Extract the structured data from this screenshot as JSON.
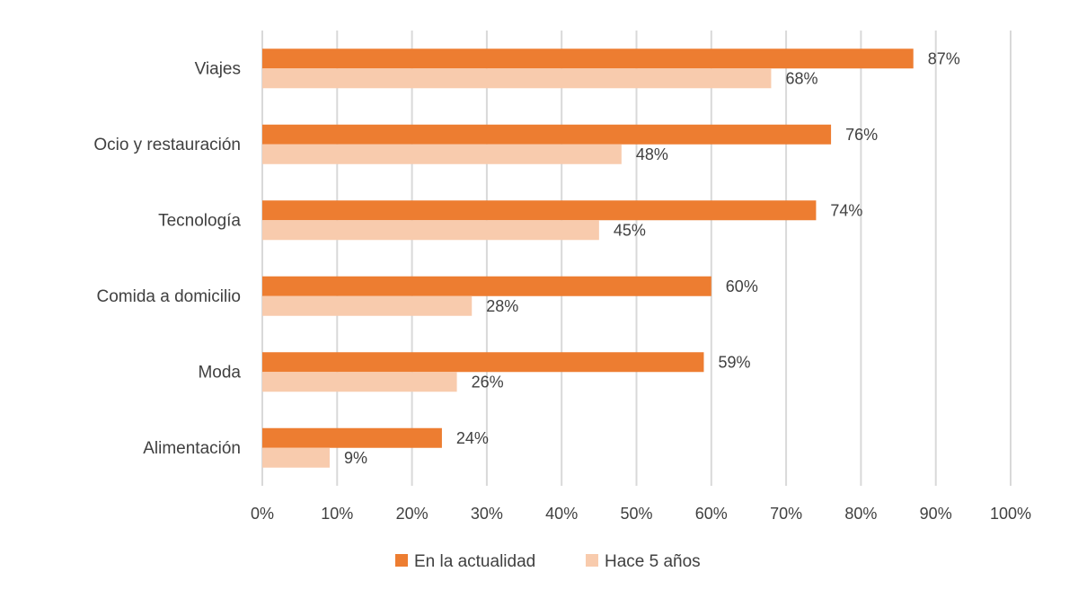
{
  "chart_data": {
    "type": "bar",
    "orientation": "horizontal",
    "categories": [
      "Viajes",
      "Ocio y restauración",
      "Tecnología",
      "Comida a domicilio",
      "Moda",
      "Alimentación"
    ],
    "series": [
      {
        "name": "En la actualidad",
        "values": [
          87,
          76,
          74,
          60,
          59,
          24
        ],
        "labels": [
          "87%",
          "76%",
          "74%",
          "60%",
          "59%",
          "24%"
        ],
        "color": "#ED7D31"
      },
      {
        "name": "Hace 5 años",
        "values": [
          68,
          48,
          45,
          28,
          26,
          9
        ],
        "labels": [
          "68%",
          "48%",
          "45%",
          "28%",
          "26%",
          "9%"
        ],
        "color": "#F8CBAD"
      }
    ],
    "xlim": [
      0,
      100
    ],
    "xticks": [
      0,
      10,
      20,
      30,
      40,
      50,
      60,
      70,
      80,
      90,
      100
    ],
    "xtick_labels": [
      "0%",
      "10%",
      "20%",
      "30%",
      "40%",
      "50%",
      "60%",
      "70%",
      "80%",
      "90%",
      "100%"
    ],
    "grid": "vertical",
    "legend_position": "bottom",
    "title": "",
    "xlabel": "",
    "ylabel": ""
  }
}
